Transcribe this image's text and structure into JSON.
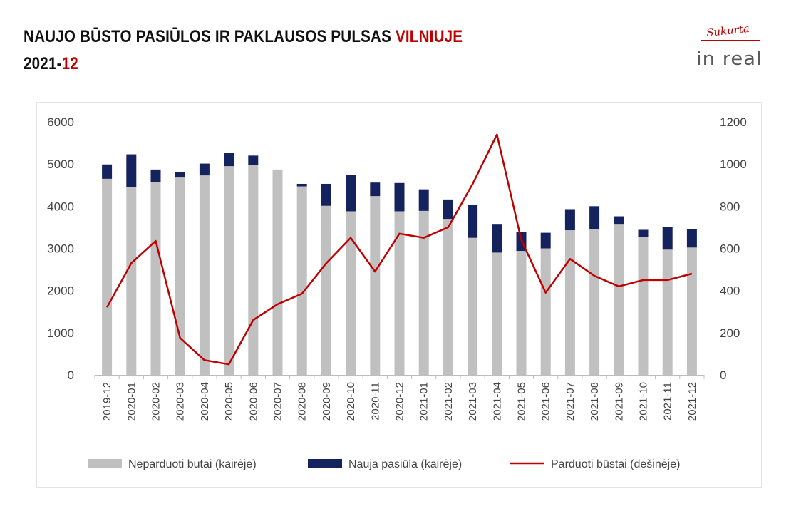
{
  "header": {
    "title_main": "NAUJO BŪSTO PASIŪLOS IR PAKLAUSOS PULSAS ",
    "title_accent": "VILNIUJE",
    "subtitle_main": "2021-",
    "subtitle_accent": "12"
  },
  "logo": {
    "script": "Sukurta",
    "word": "in real"
  },
  "colors": {
    "unsold": "#c0c0c0",
    "new_offer": "#14225e",
    "sold": "#c00000",
    "accent": "#c00000"
  },
  "chart_data": {
    "type": "bar",
    "stacked": true,
    "title": "",
    "categories": [
      "2019-12",
      "2020-01",
      "2020-02",
      "2020-03",
      "2020-04",
      "2020-05",
      "2020-06",
      "2020-07",
      "2020-08",
      "2020-09",
      "2020-10",
      "2020-11",
      "2020-12",
      "2021-01",
      "2021-02",
      "2021-03",
      "2021-04",
      "2021-05",
      "2021-06",
      "2021-07",
      "2021-08",
      "2021-09",
      "2021-10",
      "2021-11",
      "2021-12"
    ],
    "series": [
      {
        "name": "Neparduoti butai (kairėje)",
        "type": "bar",
        "axis": "left",
        "values": [
          4650,
          4450,
          4580,
          4680,
          4730,
          4950,
          4980,
          4870,
          4470,
          4010,
          3880,
          4240,
          3880,
          3890,
          3700,
          3250,
          2900,
          2940,
          3000,
          3430,
          3450,
          3580,
          3270,
          2970,
          3020
        ]
      },
      {
        "name": "Nauja pasiūla (kairėje)",
        "type": "bar",
        "axis": "left",
        "values": [
          340,
          780,
          290,
          120,
          280,
          310,
          220,
          0,
          60,
          520,
          860,
          320,
          670,
          510,
          460,
          790,
          680,
          450,
          370,
          500,
          550,
          180,
          170,
          530,
          430
        ]
      },
      {
        "name": "Parduoti būstai (dešinėje)",
        "type": "line",
        "axis": "right",
        "values": [
          320,
          530,
          635,
          175,
          70,
          50,
          260,
          335,
          385,
          530,
          650,
          490,
          670,
          650,
          700,
          905,
          1140,
          640,
          390,
          550,
          470,
          420,
          450,
          450,
          480
        ]
      }
    ],
    "left_axis": {
      "ticks": [
        "0",
        "1000",
        "2000",
        "3000",
        "4000",
        "5000",
        "6000"
      ],
      "range": [
        0,
        6000
      ]
    },
    "right_axis": {
      "ticks": [
        "0",
        "200",
        "400",
        "600",
        "800",
        "1000",
        "1200"
      ],
      "range": [
        0,
        1200
      ]
    },
    "grid": false,
    "legend_position": "bottom"
  }
}
